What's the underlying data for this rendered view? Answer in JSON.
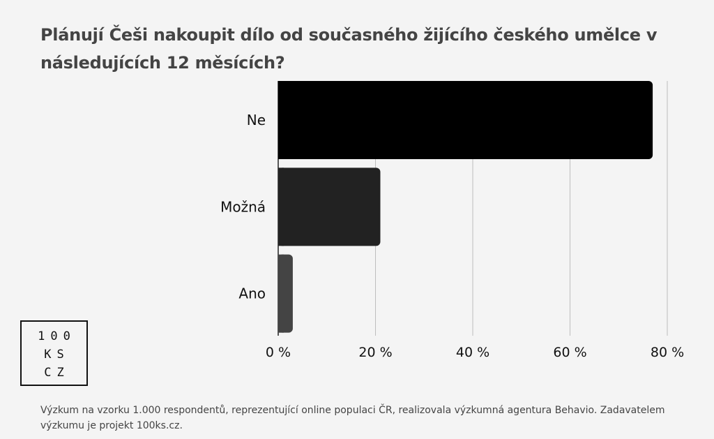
{
  "title": "Plánují Češi nakoupit dílo od současného žijícího českého umělce v následujících 12 měsících?",
  "logo": {
    "lines": [
      "100",
      "KS",
      "CZ"
    ]
  },
  "footer": "Výzkum na vzorku 1.000 respondentů, reprezentující online populaci ČR, realizovala výzkumná agentura Behavio. Zadavatelem výzkumu je projekt 100ks.cz.",
  "chart_data": {
    "type": "bar",
    "orientation": "horizontal",
    "categories": [
      "Ne",
      "Možná",
      "Ano"
    ],
    "values": [
      77,
      21,
      3
    ],
    "unit": "%",
    "xlim": [
      0,
      80
    ],
    "xticks": [
      0,
      20,
      40,
      60,
      80
    ],
    "xtick_labels": [
      "0 %",
      "20 %",
      "40 %",
      "60 %",
      "80 %"
    ],
    "bar_colors": [
      "#000000",
      "#222222",
      "#444444"
    ],
    "grid": true,
    "title": "Plánují Češi nakoupit dílo od současného žijícího českého umělce v následujících 12 měsících?"
  }
}
